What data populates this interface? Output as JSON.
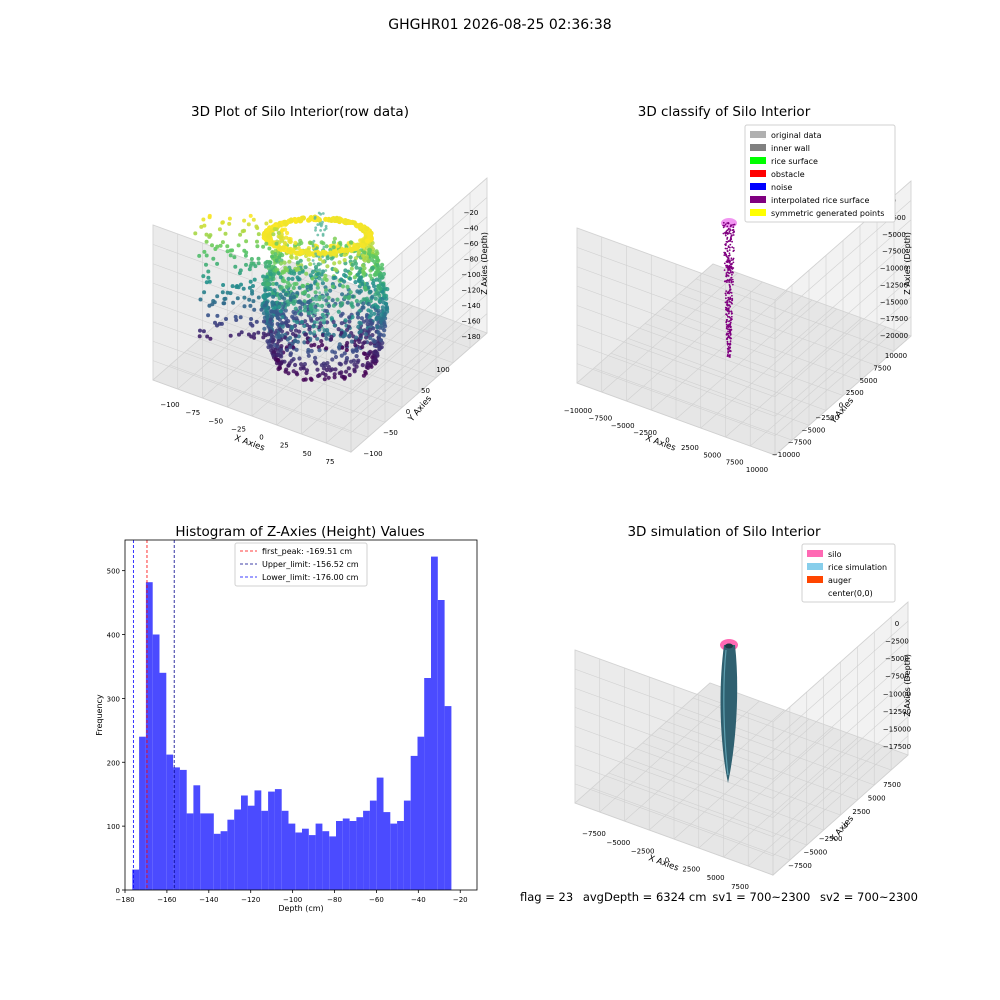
{
  "suptitle": "GHGHR01 2026-08-25 02:36:38",
  "panels": {
    "raw": {
      "title": "3D Plot of Silo Interior(row data)",
      "xlabel": "X Axies",
      "ylabel": "Y Axies",
      "zlabel": "Z Axies (Depth)",
      "xticks": [
        "−100",
        "−75",
        "−50",
        "−25",
        "0",
        "25",
        "50",
        "75"
      ],
      "yticks": [
        "−100",
        "−50",
        "0",
        "50",
        "100"
      ],
      "zticks": [
        "−20",
        "−40",
        "−60",
        "−80",
        "−100",
        "−120",
        "−140",
        "−160",
        "−180"
      ]
    },
    "classify": {
      "title": "3D classify of Silo Interior",
      "xlabel": "X Axies",
      "ylabel": "Y Axies",
      "zlabel": "Z Axies (Depth)",
      "xticks": [
        "−10000",
        "−7500",
        "−5000",
        "−2500",
        "0",
        "2500",
        "5000",
        "7500",
        "10000"
      ],
      "yticks": [
        "−10000",
        "−7500",
        "−5000",
        "−2500",
        "0",
        "2500",
        "5000",
        "7500",
        "10000"
      ],
      "zticks": [
        "0",
        "−2500",
        "−5000",
        "−7500",
        "−10000",
        "−12500",
        "−15000",
        "−17500",
        "−20000"
      ],
      "legend": [
        {
          "label": "original data",
          "color": "#b0b0b0"
        },
        {
          "label": "inner wall",
          "color": "#808080"
        },
        {
          "label": "rice surface",
          "color": "#00ff00"
        },
        {
          "label": "obstacle",
          "color": "#ff0000"
        },
        {
          "label": "noise",
          "color": "#0000ff"
        },
        {
          "label": "interpolated rice surface",
          "color": "#800080"
        },
        {
          "label": "symmetric generated points",
          "color": "#ffff00"
        }
      ]
    },
    "histogram": {
      "title": "Histogram of Z-Axies (Height) Values",
      "xlabel": "Depth (cm)",
      "ylabel": "Frequency",
      "bar_color": "#4b4bff",
      "legend": [
        {
          "label": "first_peak: -169.51 cm",
          "color": "#ff0000"
        },
        {
          "label": "Upper_limit: -156.52 cm",
          "color": "#00008b"
        },
        {
          "label": "Lower_limit: -176.00 cm",
          "color": "#0000ff"
        }
      ]
    },
    "simulation": {
      "title": "3D simulation of Silo Interior",
      "xlabel": "X Axies",
      "ylabel": "Y Axies",
      "zlabel": "Z Axies (Depth)",
      "xticks": [
        "−7500",
        "−5000",
        "−2500",
        "0",
        "2500",
        "5000",
        "7500"
      ],
      "yticks": [
        "−7500",
        "−5000",
        "−2500",
        "0",
        "2500",
        "5000",
        "7500"
      ],
      "zticks": [
        "0",
        "−2500",
        "−5000",
        "−7500",
        "−10000",
        "−12500",
        "−15000",
        "−17500"
      ],
      "legend": [
        {
          "label": "silo",
          "color": "#ff69b4"
        },
        {
          "label": "rice simulation",
          "color": "#87ceeb"
        },
        {
          "label": "auger",
          "color": "#ff4500"
        },
        {
          "label": "center(0,0)",
          "color": "#ffffff"
        }
      ]
    }
  },
  "status": {
    "flag": "flag = 23",
    "avg": "avgDepth = 6324 cm",
    "sv1": "sv1 = 700~2300",
    "sv2": "sv2 = 700~2300"
  },
  "chart_data": [
    {
      "type": "scatter",
      "title": "3D Plot of Silo Interior(row data)",
      "xlabel": "X Axies",
      "ylabel": "Y Axies",
      "zlabel": "Z Axies (Depth)",
      "xlim": [
        -110,
        80
      ],
      "ylim": [
        -100,
        110
      ],
      "zlim": [
        -185,
        -15
      ],
      "colormap": "viridis",
      "grid": true
    },
    {
      "type": "scatter",
      "title": "3D classify of Silo Interior",
      "xlabel": "X Axies",
      "ylabel": "Y Axies",
      "zlabel": "Z Axies (Depth)",
      "xlim": [
        -10000,
        10000
      ],
      "ylim": [
        -10000,
        10000
      ],
      "zlim": [
        -20000,
        0
      ],
      "legend_position": "top-right",
      "grid": true
    },
    {
      "type": "bar",
      "title": "Histogram of Z-Axies (Height) Values",
      "xlabel": "Depth (cm)",
      "ylabel": "Frequency",
      "bin_start": -176.5,
      "bin_width": 3.24,
      "values": [
        32,
        240,
        482,
        400,
        340,
        212,
        192,
        188,
        120,
        164,
        120,
        120,
        88,
        92,
        110,
        126,
        148,
        132,
        156,
        124,
        154,
        158,
        124,
        104,
        90,
        96,
        86,
        104,
        92,
        84,
        108,
        112,
        108,
        114,
        124,
        140,
        176,
        122,
        104,
        108,
        140,
        210,
        240,
        332,
        522,
        454,
        288
      ],
      "xlim": [
        -180,
        -12
      ],
      "ylim": [
        0,
        548
      ],
      "xticks": [
        -180,
        -160,
        -140,
        -120,
        -100,
        -80,
        -60,
        -40,
        -20
      ],
      "yticks": [
        0,
        100,
        200,
        300,
        400,
        500
      ],
      "vlines": [
        {
          "name": "first_peak: -169.51 cm",
          "x": -169.51,
          "color": "#ff0000"
        },
        {
          "name": "Upper_limit: -156.52 cm",
          "x": -156.52,
          "color": "#00008b"
        },
        {
          "name": "Lower_limit: -176.00 cm",
          "x": -176.0,
          "color": "#0000ff"
        }
      ],
      "legend_position": "top-center"
    },
    {
      "type": "scatter",
      "title": "3D simulation of Silo Interior",
      "xlabel": "X Axies",
      "ylabel": "Y Axies",
      "zlabel": "Z Axies (Depth)",
      "xlim": [
        -9000,
        9000
      ],
      "ylim": [
        -9000,
        9000
      ],
      "zlim": [
        -18500,
        0
      ],
      "legend_position": "top-right",
      "grid": true
    }
  ]
}
